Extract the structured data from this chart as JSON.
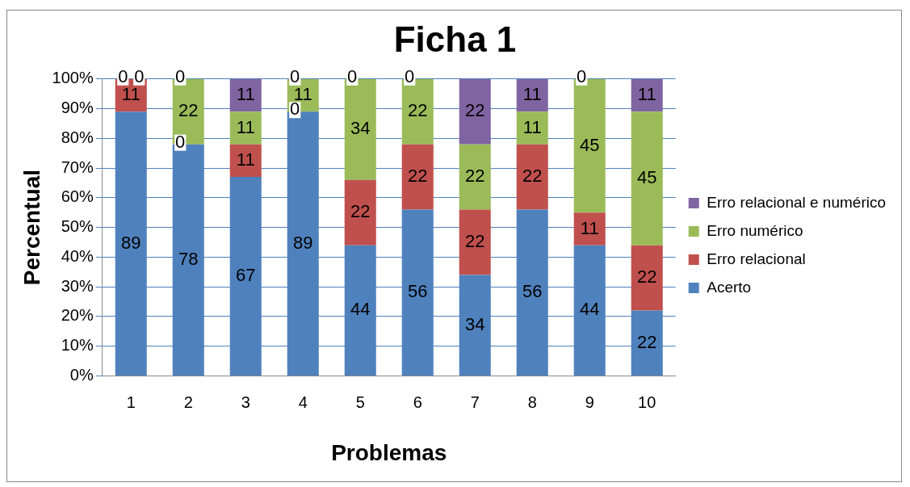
{
  "chart_data": {
    "type": "bar",
    "title": "Ficha 1",
    "xlabel": "Problemas",
    "ylabel": "Percentual",
    "categories": [
      "1",
      "2",
      "3",
      "4",
      "5",
      "6",
      "7",
      "8",
      "9",
      "10"
    ],
    "stacked": true,
    "series": [
      {
        "name": "Acerto",
        "color": "#4f81bd",
        "values": [
          89,
          78,
          67,
          89,
          44,
          56,
          34,
          56,
          44,
          22
        ]
      },
      {
        "name": "Erro relacional",
        "color": "#c0504d",
        "values": [
          11,
          0,
          11,
          0,
          22,
          22,
          22,
          22,
          11,
          22
        ]
      },
      {
        "name": "Erro numérico",
        "color": "#9bbb59",
        "values": [
          0,
          22,
          11,
          11,
          34,
          22,
          22,
          11,
          45,
          45
        ]
      },
      {
        "name": "Erro relacional e numérico",
        "color": "#8064a2",
        "values": [
          0,
          0,
          11,
          0,
          0,
          0,
          22,
          11,
          0,
          11
        ]
      }
    ],
    "ylim": [
      0,
      100
    ],
    "yticks": [
      {
        "value": 0,
        "label": "0%"
      },
      {
        "value": 10,
        "label": "10%"
      },
      {
        "value": 20,
        "label": "20%"
      },
      {
        "value": 30,
        "label": "30%"
      },
      {
        "value": 40,
        "label": "40%"
      },
      {
        "value": 50,
        "label": "50%"
      },
      {
        "value": 60,
        "label": "60%"
      },
      {
        "value": 70,
        "label": "70%"
      },
      {
        "value": 80,
        "label": "80%"
      },
      {
        "value": 90,
        "label": "90%"
      },
      {
        "value": 100,
        "label": "100%"
      }
    ],
    "grid": "y",
    "legend": "right",
    "data_labels": true
  }
}
